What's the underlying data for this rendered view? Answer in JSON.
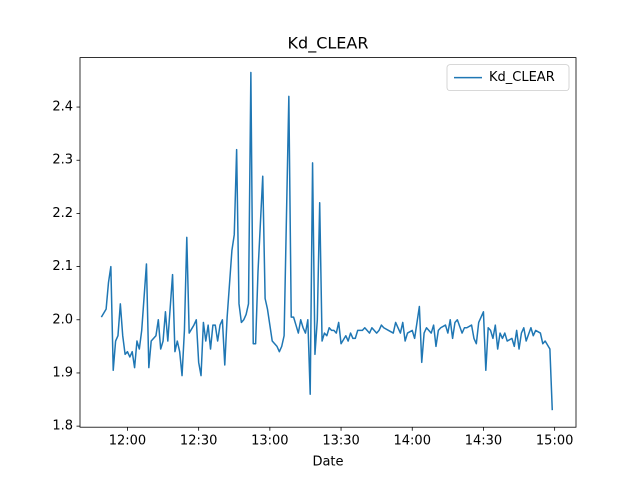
{
  "chart_data": {
    "type": "line",
    "title": "Kd_CLEAR",
    "xlabel": "Date",
    "x": [
      "11:49",
      "11:51",
      "11:52",
      "11:53",
      "11:54",
      "11:55",
      "11:56",
      "11:57",
      "11:58",
      "11:59",
      "12:00",
      "12:01",
      "12:02",
      "12:03",
      "12:04",
      "12:05",
      "12:06",
      "12:08",
      "12:09",
      "12:10",
      "12:12",
      "12:13",
      "12:14",
      "12:15",
      "12:16",
      "12:17",
      "12:19",
      "12:20",
      "12:21",
      "12:22",
      "12:23",
      "12:24",
      "12:25",
      "12:26",
      "12:28",
      "12:29",
      "12:30",
      "12:31",
      "12:32",
      "12:33",
      "12:34",
      "12:35",
      "12:36",
      "12:37",
      "12:38",
      "12:39",
      "12:40",
      "12:41",
      "12:42",
      "12:44",
      "12:45",
      "12:46",
      "12:47",
      "12:48",
      "12:49",
      "12:50",
      "12:51",
      "12:52",
      "12:53",
      "12:54",
      "12:55",
      "12:56",
      "12:57",
      "12:58",
      "12:59",
      "13:00",
      "13:01",
      "13:03",
      "13:04",
      "13:05",
      "13:06",
      "13:08",
      "13:09",
      "13:10",
      "13:11",
      "13:12",
      "13:13",
      "13:14",
      "13:15",
      "13:16",
      "13:17",
      "13:18",
      "13:19",
      "13:20",
      "13:21",
      "13:22",
      "13:23",
      "13:24",
      "13:25",
      "13:26",
      "13:27",
      "13:28",
      "13:29",
      "13:30",
      "13:32",
      "13:33",
      "13:34",
      "13:35",
      "13:36",
      "13:37",
      "13:39",
      "13:40",
      "13:42",
      "13:43",
      "13:45",
      "13:46",
      "13:47",
      "13:48",
      "13:50",
      "13:52",
      "13:53",
      "13:55",
      "13:56",
      "13:57",
      "13:58",
      "14:00",
      "14:01",
      "14:03",
      "14:04",
      "14:05",
      "14:06",
      "14:08",
      "14:09",
      "14:10",
      "14:11",
      "14:12",
      "14:14",
      "14:15",
      "14:16",
      "14:17",
      "14:18",
      "14:19",
      "14:21",
      "14:22",
      "14:23",
      "14:25",
      "14:26",
      "14:27",
      "14:28",
      "14:30",
      "14:31",
      "14:32",
      "14:33",
      "14:34",
      "14:35",
      "14:36",
      "14:37",
      "14:38",
      "14:39",
      "14:40",
      "14:42",
      "14:43",
      "14:44",
      "14:45",
      "14:46",
      "14:47",
      "14:48",
      "14:50",
      "14:51",
      "14:52",
      "14:54",
      "14:55",
      "14:56",
      "14:58",
      "14:59"
    ],
    "series": [
      {
        "name": "Kd_CLEAR",
        "color": "#1f77b4",
        "values": [
          2.005,
          2.02,
          2.07,
          2.1,
          1.905,
          1.96,
          1.97,
          2.03,
          1.97,
          1.935,
          1.94,
          1.93,
          1.94,
          1.91,
          1.96,
          1.945,
          1.98,
          2.105,
          1.91,
          1.96,
          1.97,
          2.0,
          1.945,
          1.96,
          2.015,
          1.96,
          2.085,
          1.94,
          1.96,
          1.94,
          1.895,
          1.98,
          2.155,
          1.975,
          1.99,
          2.0,
          1.92,
          1.895,
          1.995,
          1.96,
          1.99,
          1.945,
          1.99,
          1.99,
          1.96,
          1.99,
          2.0,
          1.915,
          2.005,
          2.13,
          2.16,
          2.32,
          2.03,
          1.995,
          2.0,
          2.01,
          2.03,
          2.465,
          1.955,
          1.955,
          2.09,
          2.18,
          2.27,
          2.04,
          2.02,
          1.99,
          1.96,
          1.95,
          1.94,
          1.95,
          1.97,
          2.42,
          2.005,
          2.005,
          1.99,
          1.975,
          2.0,
          1.985,
          1.975,
          2.0,
          1.86,
          2.295,
          1.935,
          2.0,
          2.22,
          1.96,
          1.975,
          1.97,
          1.985,
          1.98,
          1.98,
          1.975,
          1.995,
          1.955,
          1.97,
          1.96,
          1.975,
          1.965,
          1.965,
          1.98,
          1.98,
          1.985,
          1.975,
          1.985,
          1.975,
          1.98,
          1.99,
          1.985,
          1.98,
          1.975,
          1.995,
          1.975,
          1.995,
          1.96,
          1.975,
          1.98,
          1.965,
          2.025,
          1.92,
          1.975,
          1.985,
          1.975,
          1.99,
          1.95,
          1.98,
          1.985,
          1.99,
          1.975,
          2.0,
          1.965,
          1.995,
          2.0,
          1.975,
          1.985,
          1.985,
          1.99,
          1.965,
          1.955,
          1.995,
          2.015,
          1.905,
          1.985,
          1.98,
          1.965,
          1.99,
          1.945,
          1.975,
          1.965,
          1.975,
          1.96,
          1.965,
          1.95,
          1.98,
          1.945,
          1.975,
          1.985,
          1.96,
          1.985,
          1.97,
          1.98,
          1.975,
          1.955,
          1.96,
          1.945,
          1.83
        ]
      }
    ],
    "xlim": [
      "11:40",
      "15:09"
    ],
    "xticks": [
      "12:00",
      "12:30",
      "13:00",
      "13:30",
      "14:00",
      "14:30",
      "15:00"
    ],
    "ylim": [
      1.798,
      2.493
    ],
    "yticks": [
      1.8,
      1.9,
      {
        "value": 2,
        "label": "2.0"
      },
      2.1,
      2.2,
      2.3,
      2.4
    ],
    "legend": "upper right",
    "grid": false
  }
}
